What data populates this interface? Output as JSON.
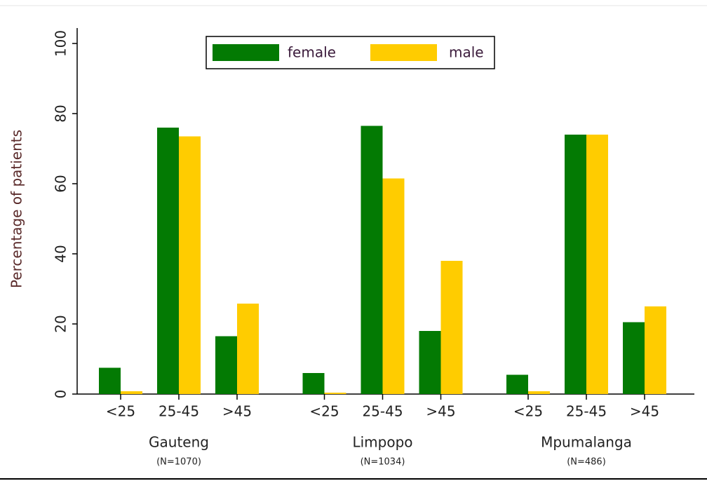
{
  "chart_data": {
    "type": "bar",
    "ylabel": "Percentage of patients",
    "categories": [
      "<25",
      "25-45",
      ">45",
      "<25",
      "25-45",
      ">45",
      "<25",
      "25-45",
      ">45"
    ],
    "groups": [
      {
        "name": "Gauteng",
        "n": "(N=1070)"
      },
      {
        "name": "Limpopo",
        "n": "(N=1034)"
      },
      {
        "name": "Mpumalanga",
        "n": "(N=486)"
      }
    ],
    "series": [
      {
        "name": "female",
        "color": "#037a03",
        "values": [
          7.5,
          76,
          16.5,
          6,
          76.5,
          18,
          5.5,
          74,
          20.5
        ]
      },
      {
        "name": "male",
        "color": "#ffcc00",
        "values": [
          0.8,
          73.5,
          25.8,
          0.4,
          61.5,
          38,
          0.8,
          74,
          25
        ]
      }
    ],
    "ylim": [
      0,
      100
    ],
    "yticks": [
      0,
      20,
      40,
      60,
      80,
      100
    ],
    "legend": "top"
  }
}
